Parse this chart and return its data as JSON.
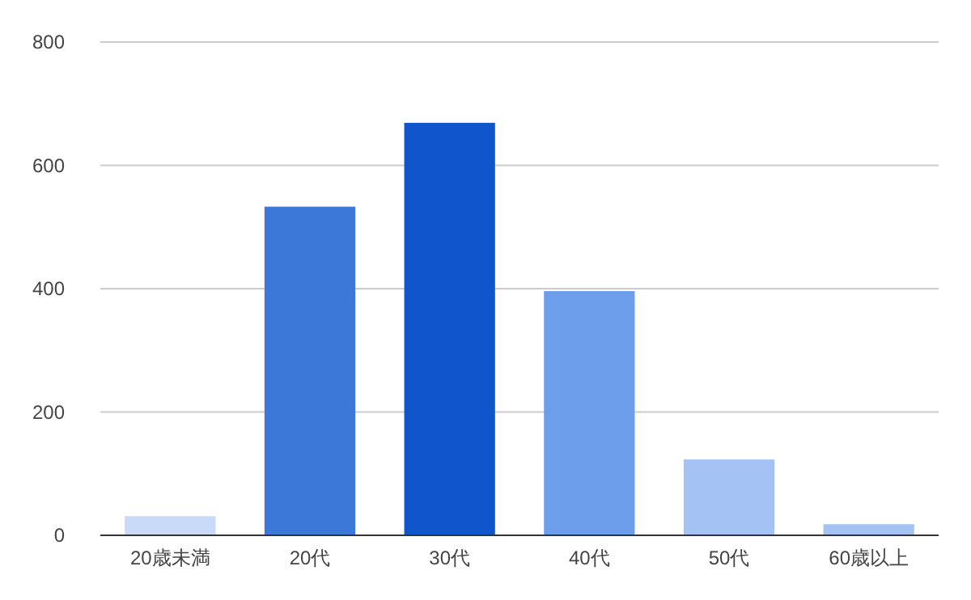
{
  "chart_data": {
    "type": "bar",
    "categories": [
      "20歳未満",
      "20代",
      "30代",
      "40代",
      "50代",
      "60歳以上"
    ],
    "values": [
      31,
      533,
      669,
      396,
      123,
      18
    ],
    "colors": [
      "#c9daf8",
      "#3c78d8",
      "#1155cc",
      "#6d9eeb",
      "#a4c2f4",
      "#a4c2f4"
    ],
    "ylim": [
      0,
      800
    ],
    "yticks": [
      0,
      200,
      400,
      600,
      800
    ],
    "grid": "y"
  }
}
